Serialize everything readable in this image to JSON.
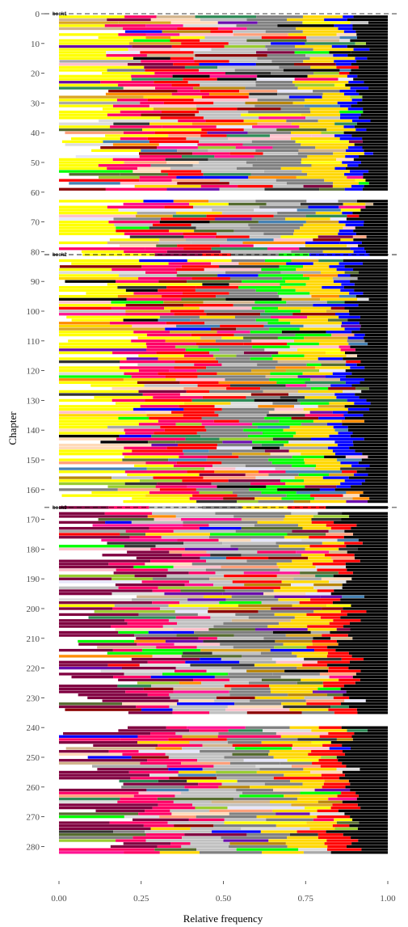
{
  "chart_data": {
    "type": "bar",
    "orientation": "horizontal",
    "stacked": "normalized",
    "xlabel": "Relative frequency",
    "ylabel": "Chapter",
    "xlim": [
      0,
      1
    ],
    "ylim": [
      0,
      285
    ],
    "x_ticks": [
      0.0,
      0.25,
      0.5,
      0.75,
      1.0
    ],
    "x_tick_labels": [
      "0.00",
      "0.25",
      "0.50",
      "0.75",
      "1.00"
    ],
    "y_ticks": [
      0,
      10,
      20,
      30,
      40,
      50,
      60,
      70,
      80,
      90,
      100,
      110,
      120,
      130,
      140,
      150,
      160,
      170,
      180,
      190,
      200,
      210,
      220,
      230,
      240,
      250,
      260,
      270,
      280
    ],
    "grid": false,
    "legend": "none",
    "book_boundaries": [
      {
        "label": "book1",
        "chapter": 0
      },
      {
        "label": "book2",
        "chapter": 81
      },
      {
        "label": "book3",
        "chapter": 166
      }
    ],
    "palette": [
      "#ffff00",
      "#ff0066",
      "#ff0000",
      "#c0c0c0",
      "#800040",
      "#808080",
      "#00ff00",
      "#ffd700",
      "#ffa07a",
      "#b8860b",
      "#ffdab9",
      "#6a0dad",
      "#0000ff",
      "#000000",
      "#dcdcdc",
      "#ff1493",
      "#2e8b57",
      "#8b0000",
      "#ffc0cb",
      "#daa520",
      "#556b2f",
      "#4682b4",
      "#d2b48c",
      "#e6e6fa",
      "#ff8c00",
      "#333333",
      "#9acd32",
      "#a9a9a9"
    ],
    "series": [
      {
        "chapters": [
          0,
          0
        ],
        "colors": [
          "#800040",
          "#ffff00",
          "#ff0066",
          "#c0c0c0",
          "#ffd700",
          "#00ff00",
          "#ffff00",
          "#000000"
        ],
        "values": [
          0.08,
          0.12,
          0.1,
          0.2,
          0.15,
          0.12,
          0.1,
          0.13
        ]
      },
      {
        "chapters": [
          0,
          80
        ],
        "colors": [
          "#ffff00",
          "#ff0066",
          "#ff0000",
          "#c0c0c0",
          "#808080",
          "#ffd700",
          "#0000ff",
          "#000000"
        ],
        "values": [
          0.2,
          0.13,
          0.12,
          0.15,
          0.14,
          0.12,
          0.05,
          0.09
        ]
      },
      {
        "chapters": [
          81,
          165
        ],
        "colors": [
          "#ffff00",
          "#ff0066",
          "#ff0000",
          "#808080",
          "#00ff00",
          "#ffd700",
          "#0000ff",
          "#000000"
        ],
        "values": [
          0.22,
          0.13,
          0.12,
          0.15,
          0.1,
          0.12,
          0.06,
          0.1
        ]
      },
      {
        "chapters": [
          166,
          285
        ],
        "colors": [
          "#800040",
          "#ff0066",
          "#c0c0c0",
          "#808080",
          "#ffd700",
          "#ff0000",
          "#000000"
        ],
        "values": [
          0.22,
          0.12,
          0.16,
          0.17,
          0.12,
          0.08,
          0.13
        ]
      }
    ]
  }
}
